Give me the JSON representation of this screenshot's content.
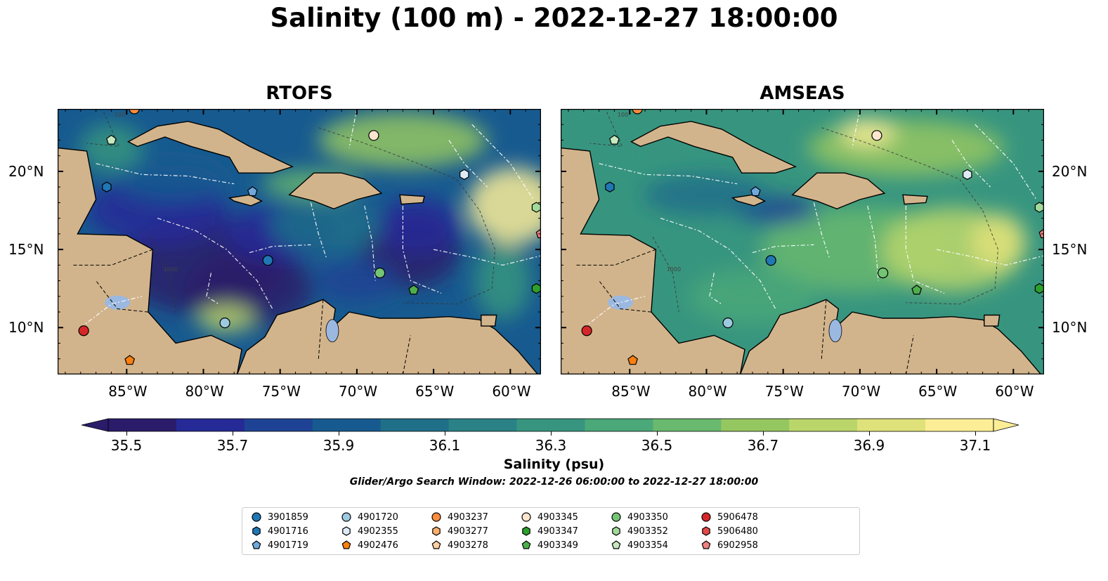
{
  "title": "Salinity (100 m) - 2022-12-27 18:00:00",
  "panels": [
    {
      "title": "RTOFS",
      "lat_labels_side": "left"
    },
    {
      "title": "AMSEAS",
      "lat_labels_side": "right"
    }
  ],
  "map": {
    "extent": {
      "lon_min": -89.5,
      "lon_max": -58.0,
      "lat_min": 7.0,
      "lat_max": 24.0
    },
    "lon_ticks": [
      "85°W",
      "80°W",
      "75°W",
      "70°W",
      "65°W",
      "60°W"
    ],
    "lat_ticks": [
      "10°N",
      "15°N",
      "20°N"
    ],
    "land_color": "#d2b48c",
    "ocean_color": "#9bb8e0",
    "contour_labels": [
      "100",
      "1000"
    ]
  },
  "colorbar": {
    "label": "Salinity (psu)",
    "ticks": [
      "35.5",
      "35.7",
      "35.9",
      "36.1",
      "36.3",
      "36.5",
      "36.7",
      "36.9",
      "37.1"
    ],
    "colors": [
      "#2a1c6a",
      "#262a96",
      "#1f4394",
      "#175a8f",
      "#1f6f89",
      "#2a8286",
      "#37957f",
      "#4ba879",
      "#69b96f",
      "#95c761",
      "#bad66b",
      "#dfe27a",
      "#fcee96"
    ],
    "extend": "both"
  },
  "search_window": "Glider/Argo Search Window: 2022-12-26 06:00:00 to 2022-12-27 18:00:00",
  "legend_items": [
    {
      "id": "3901859",
      "marker": "circle",
      "color": "#1f77b4"
    },
    {
      "id": "4901716",
      "marker": "hexagon",
      "color": "#1f77b4"
    },
    {
      "id": "4901719",
      "marker": "pentagon",
      "color": "#6fa8dc"
    },
    {
      "id": "4901720",
      "marker": "circle",
      "color": "#9ecae1"
    },
    {
      "id": "4902355",
      "marker": "hexagon",
      "color": "#deebf7"
    },
    {
      "id": "4902476",
      "marker": "pentagon",
      "color": "#ff7f0e"
    },
    {
      "id": "4903237",
      "marker": "circle",
      "color": "#fd8d3c"
    },
    {
      "id": "4903277",
      "marker": "hexagon",
      "color": "#fdae6b"
    },
    {
      "id": "4903278",
      "marker": "pentagon",
      "color": "#fdd0a2"
    },
    {
      "id": "4903345",
      "marker": "circle",
      "color": "#fee6ce"
    },
    {
      "id": "4903347",
      "marker": "hexagon",
      "color": "#2ca02c"
    },
    {
      "id": "4903349",
      "marker": "pentagon",
      "color": "#4daf4a"
    },
    {
      "id": "4903350",
      "marker": "circle",
      "color": "#74c476"
    },
    {
      "id": "4903352",
      "marker": "hexagon",
      "color": "#a1d99b"
    },
    {
      "id": "4903354",
      "marker": "pentagon",
      "color": "#c7e9c0"
    },
    {
      "id": "5906478",
      "marker": "circle",
      "color": "#d62728"
    },
    {
      "id": "5906480",
      "marker": "hexagon",
      "color": "#e34a4a"
    },
    {
      "id": "6902958",
      "marker": "pentagon",
      "color": "#f08080"
    }
  ],
  "floats": [
    {
      "id": "3901859",
      "lon": -75.8,
      "lat": 14.3
    },
    {
      "id": "4901716",
      "lon": -86.3,
      "lat": 19.0
    },
    {
      "id": "4901719",
      "lon": -76.8,
      "lat": 18.7
    },
    {
      "id": "4901720",
      "lon": -78.6,
      "lat": 10.3
    },
    {
      "id": "4902355",
      "lon": -63.0,
      "lat": 19.8
    },
    {
      "id": "4902476",
      "lon": -84.8,
      "lat": 7.9
    },
    {
      "id": "4903237",
      "lon": -84.5,
      "lat": 24.0
    },
    {
      "id": "4903345",
      "lon": -68.9,
      "lat": 22.3
    },
    {
      "id": "4903347",
      "lon": -58.3,
      "lat": 12.5
    },
    {
      "id": "4903349",
      "lon": -66.3,
      "lat": 12.4
    },
    {
      "id": "4903350",
      "lon": -68.5,
      "lat": 13.5
    },
    {
      "id": "4903352",
      "lon": -58.3,
      "lat": 17.7
    },
    {
      "id": "4903354",
      "lon": -86.0,
      "lat": 22.0
    },
    {
      "id": "5906478",
      "lon": -87.8,
      "lat": 9.8
    },
    {
      "id": "6902958",
      "lon": -58.0,
      "lat": 16.0
    }
  ]
}
